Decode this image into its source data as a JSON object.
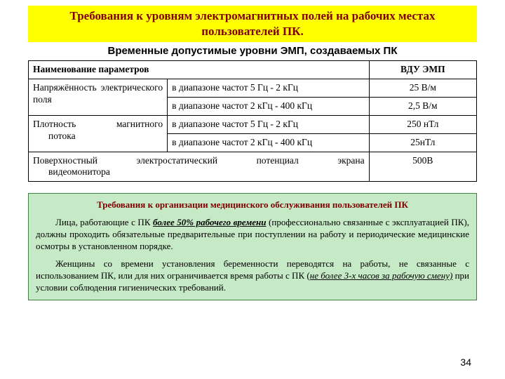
{
  "banner": "Требования к уровням электромагнитных полей на рабочих местах пользователей ПК.",
  "subtitle": "Временные допустимые уровни ЭМП, создаваемых ПК",
  "table": {
    "columns": [
      "Наименование параметров",
      "ВДУ ЭМП"
    ],
    "col_widths_pct": [
      31,
      45,
      24
    ],
    "border_color": "#000000",
    "font_size_pt": 10,
    "rows": [
      {
        "param": "Напряжённость электрического поля",
        "range": "в диапазоне частот 5 Гц - 2 кГц",
        "value": "25 В/м"
      },
      {
        "param": "",
        "range": "в диапазоне частот 2 кГц - 400 кГц",
        "value": "2,5 В/м"
      },
      {
        "param": "Плотность магнитного потока",
        "range": "в диапазоне частот 5 Гц - 2 кГц",
        "value": "250 нТл"
      },
      {
        "param": "",
        "range": "в диапазоне частот 2 кГц - 400 кГц",
        "value": "25нТл"
      },
      {
        "param_full": "Поверхностный электростатический потенциал экрана видеомонитора",
        "value": "500В"
      }
    ]
  },
  "green": {
    "background_color": "#c6e9c6",
    "border_color": "#3e7e3e",
    "title_color": "#800000",
    "title": "Требования к организации медицинского обслуживания пользователей ПК",
    "p1_a": "Лица, работающие с ПК  ",
    "p1_b": "более 50% рабочего времени",
    "p1_c": " (профессионально связанные с эксплуатацией ПК), должны проходить обязательные предварительные при поступлении на работу и периодические медицинские осмотры в установленном порядке.",
    "p2_a": "Женщины со времени установления беременности переводятся на работы, не связанные с использованием ПК, или для них ограничивается время работы с ПК (",
    "p2_b": "не более 3-х часов за рабочую смену)",
    "p2_c": "  при условии соблюдения гигиенических требований."
  },
  "page_number": "34",
  "colors": {
    "banner_bg": "#ffff00",
    "banner_text": "#800000",
    "page_bg": "#ffffff"
  }
}
